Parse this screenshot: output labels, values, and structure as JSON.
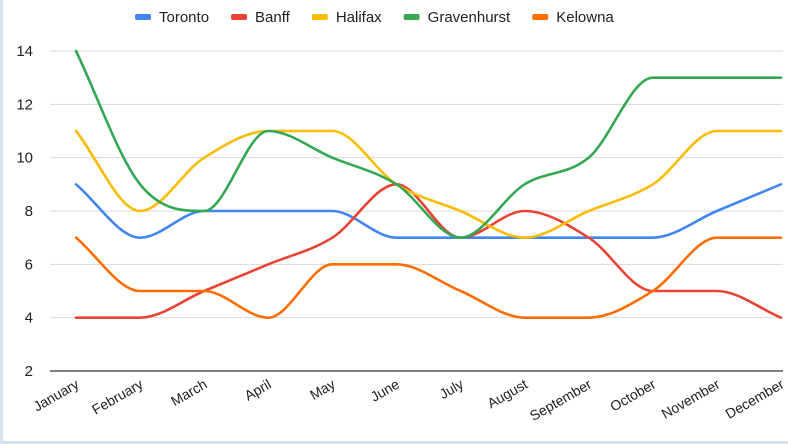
{
  "chart_data": {
    "type": "line",
    "categories": [
      "January",
      "February",
      "March",
      "April",
      "May",
      "June",
      "July",
      "August",
      "September",
      "October",
      "November",
      "December"
    ],
    "series": [
      {
        "name": "Toronto",
        "color": "#4285f4",
        "values": [
          9,
          7,
          8,
          8,
          8,
          7,
          7,
          7,
          7,
          7,
          8,
          9
        ]
      },
      {
        "name": "Banff",
        "color": "#ea4335",
        "values": [
          4,
          4,
          5,
          6,
          7,
          9,
          7,
          8,
          7,
          5,
          5,
          4
        ]
      },
      {
        "name": "Halifax",
        "color": "#fbbc04",
        "values": [
          11,
          8,
          10,
          11,
          11,
          9,
          8,
          7,
          8,
          9,
          11,
          11
        ]
      },
      {
        "name": "Gravenhurst",
        "color": "#34a853",
        "values": [
          14,
          9,
          8,
          11,
          10,
          9,
          7,
          9,
          10,
          13,
          13,
          13
        ]
      },
      {
        "name": "Kelowna",
        "color": "#ff6d01",
        "values": [
          7,
          5,
          5,
          4,
          6,
          6,
          5,
          4,
          4,
          5,
          7,
          7
        ]
      }
    ],
    "yticks": [
      2,
      4,
      6,
      8,
      10,
      12,
      14
    ],
    "ylim": [
      2,
      14
    ],
    "grid": true,
    "legend": "top-center",
    "smooth": true
  }
}
